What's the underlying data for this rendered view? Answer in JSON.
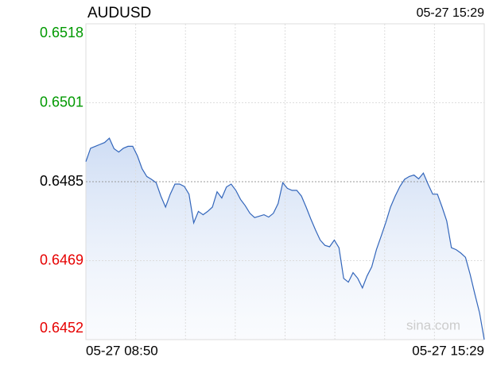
{
  "chart_data": {
    "type": "line",
    "title": "AUDUSD",
    "timestamp": "05-27 15:29",
    "watermark": "sina.com",
    "x_start_label": "05-27 08:50",
    "x_end_label": "05-27 15:29",
    "ylim": [
      0.6452,
      0.6518
    ],
    "yticks": [
      0.6452,
      {
        "value": 0.64685,
        "label": "0.6469"
      },
      0.6485,
      {
        "value": 0.65015,
        "label": "0.6501"
      },
      0.6518
    ],
    "ytick_colors": [
      "#e60000",
      "#e60000",
      "#000000",
      "#009900",
      "#009900"
    ],
    "grid": true,
    "series": [
      {
        "color": "#3366bb",
        "values": [
          0.64892,
          0.6492,
          0.64924,
          0.64928,
          0.64932,
          0.64941,
          0.64919,
          0.64912,
          0.6492,
          0.64924,
          0.64924,
          0.64904,
          0.64877,
          0.64861,
          0.64855,
          0.64848,
          0.6482,
          0.64797,
          0.64824,
          0.64845,
          0.64845,
          0.6484,
          0.64824,
          0.64764,
          0.64788,
          0.64781,
          0.64788,
          0.64797,
          0.64829,
          0.64816,
          0.64839,
          0.64845,
          0.64832,
          0.64813,
          0.648,
          0.64784,
          0.64775,
          0.64778,
          0.64781,
          0.64776,
          0.64784,
          0.64804,
          0.64848,
          0.64836,
          0.64832,
          0.64832,
          0.6482,
          0.64797,
          0.64772,
          0.64749,
          0.64728,
          0.64717,
          0.64714,
          0.64728,
          0.64712,
          0.64648,
          0.6464,
          0.6466,
          0.64648,
          0.64628,
          0.64653,
          0.64672,
          0.64708,
          0.64736,
          0.64765,
          0.64797,
          0.6482,
          0.6484,
          0.64855,
          0.64861,
          0.64864,
          0.64856,
          0.64868,
          0.64845,
          0.64824,
          0.64824,
          0.64797,
          0.64768,
          0.64712,
          0.64708,
          0.64701,
          0.64692,
          0.64656,
          0.64615,
          0.64576,
          0.6452
        ]
      }
    ]
  }
}
